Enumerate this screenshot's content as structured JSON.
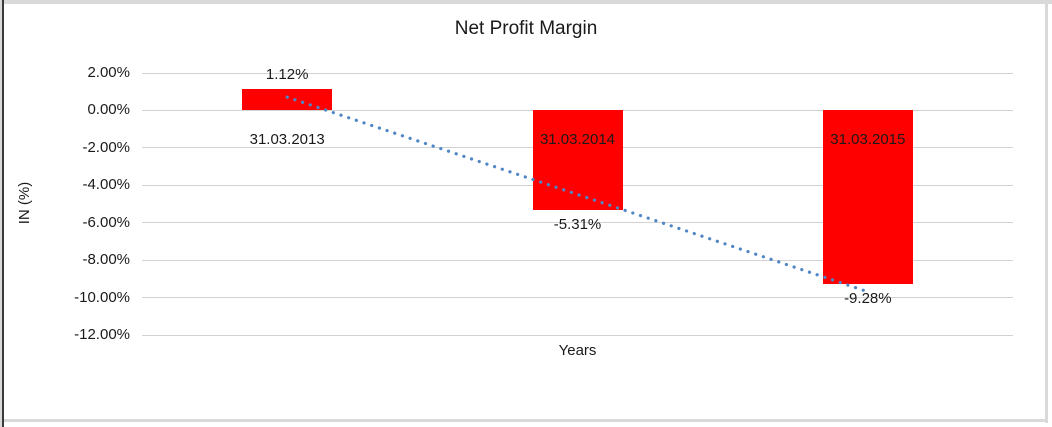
{
  "window": {
    "background": "#ffffff",
    "border_gray": "#d9d9d9",
    "border_dark": "#3a3a3a"
  },
  "chart_data": {
    "type": "bar",
    "title": "Net Profit Margin",
    "xlabel": "Years",
    "ylabel": "IN (%)",
    "categories": [
      "31.03.2013",
      "31.03.2014",
      "31.03.2015"
    ],
    "values": [
      1.12,
      -5.31,
      -9.28
    ],
    "data_labels": [
      "1.12%",
      "-5.31%",
      "-9.28%"
    ],
    "bar_color": "#ff0000",
    "ylim": [
      -12,
      2
    ],
    "ytick_step": 2,
    "ytick_values": [
      2,
      0,
      -2,
      -4,
      -6,
      -8,
      -10,
      -12
    ],
    "ytick_labels": [
      "2.00%",
      "0.00%",
      "-2.00%",
      "-4.00%",
      "-6.00%",
      "-8.00%",
      "-10.00%",
      "-12.00%"
    ],
    "grid": true,
    "gridline_color": "#d2d2d2",
    "legend": "none",
    "trendline": {
      "type": "linear",
      "style": "dotted",
      "color": "#4f86c6",
      "values_at_first_and_last_category": [
        0.71,
        -9.69
      ]
    }
  }
}
